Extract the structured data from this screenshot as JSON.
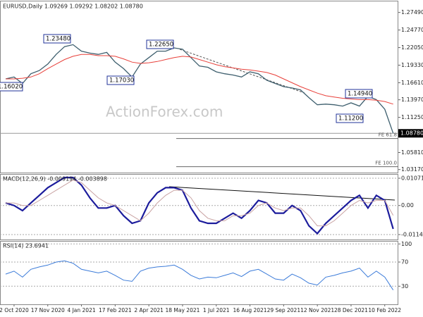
{
  "chart_data": [
    {
      "type": "line",
      "title": "EURUSD,Daily  1.09269 1.09292 1.08202 1.08780",
      "watermark": "ActionForex.com",
      "ylim": [
        1.027,
        1.292
      ],
      "yticks": [
        {
          "value": 1.2749,
          "label": "1.27490"
        },
        {
          "value": 1.2477,
          "label": "1.24770"
        },
        {
          "value": 1.2205,
          "label": "1.22050"
        },
        {
          "value": 1.1933,
          "label": "1.19330"
        },
        {
          "value": 1.1661,
          "label": "1.16610"
        },
        {
          "value": 1.1397,
          "label": "1.13970"
        },
        {
          "value": 1.1125,
          "label": "1.11250"
        },
        {
          "value": 1.0581,
          "label": "1.05810"
        },
        {
          "value": 1.0317,
          "label": "1.03170"
        }
      ],
      "grid": false,
      "last_price": {
        "value": 1.0878,
        "label": "1.08780"
      },
      "annotations": [
        "1.23480",
        "1.22650",
        "1.17030",
        "1.16020",
        "1.11200",
        "1.14940"
      ],
      "fe_levels": [
        {
          "label": "FE 61.8",
          "value": 1.0797
        },
        {
          "label": "FE 100.0",
          "value": 1.0361
        }
      ],
      "series": [
        {
          "name": "EURUSD",
          "color": "#3e5f6e",
          "values": [
            1.172,
            1.175,
            1.165,
            1.18,
            1.185,
            1.195,
            1.21,
            1.222,
            1.225,
            1.215,
            1.212,
            1.21,
            1.213,
            1.198,
            1.188,
            1.175,
            1.195,
            1.205,
            1.215,
            1.215,
            1.22,
            1.218,
            1.205,
            1.192,
            1.19,
            1.183,
            1.18,
            1.178,
            1.175,
            1.183,
            1.18,
            1.17,
            1.165,
            1.16,
            1.158,
            1.155,
            1.143,
            1.132,
            1.133,
            1.132,
            1.13,
            1.135,
            1.13,
            1.145,
            1.14,
            1.125,
            1.0878
          ]
        },
        {
          "name": "MA",
          "color": "#e8403a",
          "values": [
            1.172,
            1.172,
            1.173,
            1.175,
            1.18,
            1.188,
            1.195,
            1.202,
            1.207,
            1.21,
            1.21,
            1.208,
            1.208,
            1.207,
            1.203,
            1.198,
            1.196,
            1.197,
            1.199,
            1.202,
            1.205,
            1.207,
            1.206,
            1.202,
            1.198,
            1.194,
            1.191,
            1.189,
            1.187,
            1.186,
            1.184,
            1.182,
            1.178,
            1.172,
            1.166,
            1.16,
            1.155,
            1.15,
            1.146,
            1.144,
            1.142,
            1.141,
            1.14,
            1.14,
            1.139,
            1.137,
            1.133
          ]
        }
      ]
    },
    {
      "type": "line",
      "title": "MACD(12,26,9) -0.009194 -0.003898",
      "ylim": [
        -0.01336,
        0.01238
      ],
      "yticks": [
        0.010715,
        {
          "value": 0,
          "label": "0.00"
        },
        -0.011424
      ],
      "grid": true,
      "series": [
        {
          "name": "MACD",
          "color": "#1c1c9c",
          "values": [
            0.001,
            0.0,
            -0.002,
            0.001,
            0.004,
            0.007,
            0.009,
            0.011,
            0.011,
            0.008,
            0.003,
            -0.001,
            -0.001,
            0.0,
            -0.004,
            -0.007,
            -0.006,
            0.001,
            0.005,
            0.007,
            0.007,
            0.006,
            -0.001,
            -0.006,
            -0.007,
            -0.007,
            -0.005,
            -0.003,
            -0.005,
            -0.002,
            0.002,
            0.001,
            -0.003,
            -0.003,
            0.0,
            -0.002,
            -0.008,
            -0.011,
            -0.007,
            -0.004,
            -0.001,
            0.002,
            0.004,
            -0.001,
            0.004,
            0.002,
            -0.009194
          ]
        },
        {
          "name": "Signal",
          "color": "#c9a3a3",
          "values": [
            0.001,
            0.001,
            0.0,
            0.0,
            0.002,
            0.004,
            0.006,
            0.008,
            0.01,
            0.009,
            0.006,
            0.003,
            0.001,
            0.0,
            -0.002,
            -0.004,
            -0.006,
            -0.003,
            0.001,
            0.004,
            0.006,
            0.006,
            0.003,
            -0.002,
            -0.005,
            -0.006,
            -0.006,
            -0.004,
            -0.004,
            -0.003,
            0.0,
            0.001,
            -0.001,
            -0.002,
            -0.001,
            -0.001,
            -0.004,
            -0.008,
            -0.008,
            -0.006,
            -0.003,
            0.0,
            0.002,
            0.001,
            0.002,
            0.002,
            -0.003898
          ]
        }
      ]
    },
    {
      "type": "line",
      "title": "RSI(14) 23.6941",
      "ylim": [
        0,
        105
      ],
      "yticks": [
        100,
        70,
        30
      ],
      "grid": true,
      "categories": [
        null,
        "2 Oct 2020",
        null,
        null,
        null,
        "17 Nov 2020",
        null,
        null,
        null,
        "4 Jan 2021",
        null,
        null,
        null,
        "17 Feb 2021",
        null,
        null,
        null,
        "2 Apr 2021",
        null,
        null,
        null,
        "18 May 2021",
        null,
        null,
        null,
        "1 Jul 2021",
        null,
        null,
        null,
        "16 Aug 2021",
        null,
        null,
        null,
        "29 Sep 2021",
        null,
        null,
        null,
        "12 Nov 2021",
        null,
        null,
        null,
        "28 Dec 2021",
        null,
        null,
        null,
        "10 Feb 2022",
        null
      ],
      "series": [
        {
          "name": "RSI",
          "color": "#3b7bd9",
          "values": [
            50,
            55,
            45,
            58,
            62,
            65,
            70,
            72,
            68,
            58,
            55,
            52,
            55,
            48,
            40,
            38,
            55,
            60,
            62,
            63,
            65,
            58,
            48,
            42,
            45,
            44,
            48,
            52,
            46,
            55,
            58,
            50,
            42,
            40,
            50,
            44,
            35,
            32,
            45,
            48,
            52,
            55,
            60,
            45,
            55,
            45,
            23.6941
          ]
        }
      ]
    }
  ]
}
